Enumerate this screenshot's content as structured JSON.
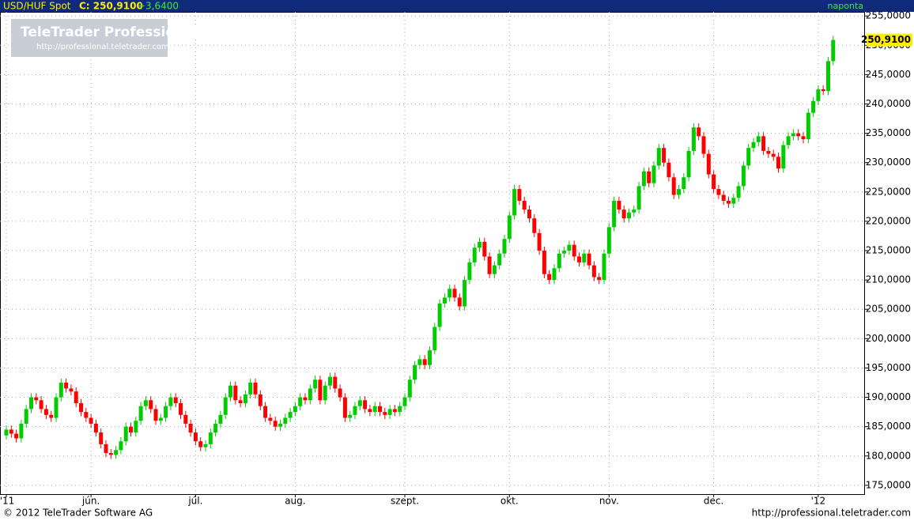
{
  "header": {
    "symbol": "USD/HUF Spot",
    "close_label": "C: 250,9100",
    "change_label": "+3,6400",
    "period": "naponta"
  },
  "watermark": {
    "title": "TeleTrader Professional",
    "url": "http://professional.teletrader.com/"
  },
  "footer": {
    "copyright": "© 2012 TeleTrader Software AG",
    "url": "http://professional.teletrader.com"
  },
  "chart_data": {
    "type": "candlestick",
    "up_color": "#00cc00",
    "down_color": "#ff0000",
    "grid": true,
    "last_value_label": "250,9100",
    "ylim": [
      173.5,
      255.7
    ],
    "yticks": [
      {
        "value": 175,
        "label": "175,0000"
      },
      {
        "value": 180,
        "label": "180,0000"
      },
      {
        "value": 185,
        "label": "185,0000"
      },
      {
        "value": 190,
        "label": "190,0000"
      },
      {
        "value": 195,
        "label": "195,0000"
      },
      {
        "value": 200,
        "label": "200,0000"
      },
      {
        "value": 205,
        "label": "205,0000"
      },
      {
        "value": 210,
        "label": "210,0000"
      },
      {
        "value": 215,
        "label": "215,0000"
      },
      {
        "value": 220,
        "label": "220,0000"
      },
      {
        "value": 225,
        "label": "225,0000"
      },
      {
        "value": 230,
        "label": "230,0000"
      },
      {
        "value": 235,
        "label": "235,0000"
      },
      {
        "value": 240,
        "label": "240,0000"
      },
      {
        "value": 245,
        "label": "245,0000"
      },
      {
        "value": 250,
        "label": "250,0000"
      },
      {
        "value": 255,
        "label": "255,0000"
      }
    ],
    "categories": [
      "'11",
      null,
      null,
      null,
      null,
      null,
      null,
      null,
      null,
      null,
      null,
      null,
      null,
      null,
      null,
      null,
      null,
      "jún.",
      null,
      null,
      null,
      null,
      null,
      null,
      null,
      null,
      null,
      null,
      null,
      null,
      null,
      null,
      null,
      null,
      null,
      null,
      null,
      null,
      "júl.",
      null,
      null,
      null,
      null,
      null,
      null,
      null,
      null,
      null,
      null,
      null,
      null,
      null,
      null,
      null,
      null,
      null,
      null,
      null,
      "aug.",
      null,
      null,
      null,
      null,
      null,
      null,
      null,
      null,
      null,
      null,
      null,
      null,
      null,
      null,
      null,
      null,
      null,
      null,
      null,
      null,
      null,
      "szept.",
      null,
      null,
      null,
      null,
      null,
      null,
      null,
      null,
      null,
      null,
      null,
      null,
      null,
      null,
      null,
      null,
      null,
      null,
      null,
      null,
      "okt.",
      null,
      null,
      null,
      null,
      null,
      null,
      null,
      null,
      null,
      null,
      null,
      null,
      null,
      null,
      null,
      null,
      null,
      null,
      null,
      "nov.",
      null,
      null,
      null,
      null,
      null,
      null,
      null,
      null,
      null,
      null,
      null,
      null,
      null,
      null,
      null,
      null,
      null,
      null,
      null,
      null,
      "dec.",
      null,
      null,
      null,
      null,
      null,
      null,
      null,
      null,
      null,
      null,
      null,
      null,
      null,
      null,
      null,
      null,
      null,
      null,
      null,
      null,
      "'12",
      null,
      null,
      null
    ],
    "open": [
      183.5,
      184.5,
      183.8,
      183,
      185.5,
      188,
      190,
      189.5,
      188,
      187,
      186.5,
      190,
      192.5,
      191.5,
      191,
      189,
      187.5,
      186.5,
      185.5,
      184,
      182,
      180.5,
      180.2,
      181,
      182.5,
      185,
      184,
      186,
      188.5,
      189.5,
      188,
      186,
      186.5,
      188.5,
      190,
      189,
      187,
      185.5,
      184,
      182.5,
      181.5,
      182,
      184,
      185.5,
      187,
      190,
      192,
      189.5,
      189,
      190.5,
      192.5,
      190.5,
      188.5,
      186.5,
      186,
      185,
      185.5,
      186.5,
      187.5,
      188.5,
      190,
      189.5,
      191.5,
      193,
      189.5,
      192,
      193.5,
      191.5,
      190,
      186.5,
      187,
      188.5,
      189.5,
      188,
      187.5,
      188.5,
      187.5,
      187,
      188,
      187.5,
      188.5,
      190,
      193,
      195.5,
      196.5,
      195.5,
      198,
      202,
      206,
      207,
      208.5,
      207,
      205.5,
      210,
      213,
      215.5,
      216.5,
      214,
      211,
      212.5,
      214.5,
      217,
      221,
      225.5,
      223.5,
      222,
      220.5,
      218,
      215,
      211,
      210,
      212,
      214.5,
      215,
      216,
      214,
      213,
      214.5,
      212.5,
      210.5,
      210,
      214.5,
      219,
      223.5,
      222,
      220.5,
      221.5,
      222,
      226,
      228.5,
      226.5,
      229.5,
      232.5,
      230,
      227.5,
      224.5,
      225.5,
      227.5,
      232,
      236,
      234.5,
      231.5,
      228,
      225.5,
      224.5,
      223.5,
      223,
      224,
      226,
      229.5,
      232.5,
      233.5,
      234.5,
      232,
      231.5,
      231,
      229,
      233,
      234.5,
      235,
      234.5,
      234,
      238.5,
      240.5,
      242.5,
      242.2,
      247.3
    ],
    "high": [
      185.2,
      185.2,
      184.5,
      186.2,
      188.7,
      190.7,
      190.7,
      190.2,
      188.7,
      187.7,
      190.7,
      193.2,
      193.2,
      192.2,
      191.7,
      189.7,
      188.2,
      187.2,
      186.2,
      184.7,
      182.7,
      181.2,
      181.7,
      183.2,
      185.7,
      185.7,
      186.7,
      189.2,
      190.2,
      190.2,
      188.7,
      187.2,
      189.2,
      190.7,
      190.7,
      189.7,
      187.7,
      186.2,
      184.7,
      183.2,
      182.7,
      184.7,
      186.2,
      187.7,
      190.7,
      192.7,
      192.7,
      190.2,
      191.2,
      193.2,
      193.2,
      191.2,
      189.2,
      187.2,
      186.7,
      186.2,
      187.2,
      188.2,
      189.2,
      190.7,
      190.7,
      192.2,
      193.7,
      193.7,
      192.7,
      194.2,
      194.2,
      192.2,
      190.7,
      187.7,
      189.2,
      190.2,
      190.2,
      188.7,
      189.2,
      189.2,
      188.2,
      188.7,
      188.7,
      189.2,
      190.7,
      193.7,
      196.2,
      197.2,
      197.2,
      198.7,
      202.7,
      206.7,
      207.7,
      209.2,
      209.2,
      207.7,
      210.7,
      213.7,
      216.2,
      217.2,
      217.2,
      214.7,
      213.2,
      215.2,
      217.7,
      221.7,
      226.2,
      226.2,
      224.2,
      222.7,
      221.2,
      218.7,
      215.7,
      211.7,
      212.7,
      215.2,
      215.7,
      216.7,
      216.7,
      214.7,
      215.2,
      215.2,
      213.2,
      211.2,
      215.2,
      219.7,
      224.2,
      224.2,
      222.7,
      222.2,
      222.7,
      226.7,
      229.2,
      229.2,
      230.2,
      233.2,
      233.2,
      230.7,
      228.2,
      226.2,
      228.2,
      232.7,
      236.7,
      236.7,
      235.2,
      232.2,
      228.7,
      226.2,
      225.2,
      224.2,
      224.7,
      226.7,
      230.2,
      233.2,
      234.2,
      235.2,
      235.2,
      232.7,
      232.2,
      231.7,
      233.7,
      235.2,
      235.7,
      235.7,
      235.2,
      239.2,
      241.2,
      243.2,
      243.2,
      248.0,
      251.61
    ],
    "low": [
      182.8,
      183.1,
      182.3,
      182.3,
      184.8,
      187.3,
      188.8,
      187.3,
      186.3,
      185.8,
      185.8,
      189.3,
      190.8,
      190.3,
      188.3,
      186.8,
      185.8,
      184.8,
      183.3,
      181.3,
      179.8,
      179.5,
      179.5,
      180.3,
      181.8,
      183.3,
      183.3,
      185.3,
      187.8,
      187.3,
      185.3,
      185.3,
      185.8,
      187.8,
      188.3,
      186.3,
      184.8,
      183.3,
      181.8,
      180.8,
      180.8,
      181.3,
      183.3,
      184.8,
      186.3,
      189.3,
      188.8,
      188.3,
      188.3,
      189.8,
      189.8,
      187.8,
      185.8,
      185.3,
      184.3,
      184.3,
      184.8,
      185.8,
      186.8,
      187.8,
      188.8,
      188.8,
      190.8,
      188.8,
      188.8,
      191.3,
      190.8,
      189.3,
      185.8,
      185.8,
      186.3,
      187.8,
      187.3,
      186.8,
      186.8,
      186.8,
      186.3,
      186.3,
      186.8,
      186.8,
      187.8,
      189.3,
      192.3,
      194.8,
      194.8,
      194.8,
      197.3,
      201.3,
      205.3,
      206.3,
      206.3,
      204.8,
      204.8,
      209.3,
      212.3,
      214.8,
      213.3,
      210.3,
      210.3,
      211.8,
      213.8,
      216.3,
      220.3,
      222.8,
      221.3,
      219.8,
      217.3,
      214.3,
      210.3,
      209.3,
      209.3,
      211.3,
      213.8,
      214.3,
      213.3,
      212.3,
      212.3,
      211.8,
      209.8,
      209.3,
      209.3,
      213.8,
      218.3,
      221.3,
      219.8,
      219.8,
      220.8,
      221.3,
      225.3,
      225.8,
      225.8,
      228.8,
      229.3,
      226.8,
      223.8,
      223.8,
      224.8,
      226.8,
      231.3,
      233.8,
      230.8,
      227.3,
      224.8,
      223.8,
      222.8,
      222.3,
      222.3,
      223.3,
      225.3,
      228.8,
      231.8,
      232.8,
      231.3,
      230.8,
      230.3,
      228.3,
      228.3,
      232.3,
      233.8,
      233.8,
      233.3,
      233.3,
      237.8,
      239.8,
      241.5,
      241.5,
      246.6
    ],
    "close": [
      184.5,
      183.8,
      183,
      185.5,
      188,
      190,
      189.5,
      188,
      187,
      186.5,
      190,
      192.5,
      191.5,
      191,
      189,
      187.5,
      186.5,
      185.5,
      184,
      182,
      180.5,
      180.2,
      181,
      182.5,
      185,
      184,
      186,
      188.5,
      189.5,
      188,
      186,
      186.5,
      188.5,
      190,
      189,
      187,
      185.5,
      184,
      182.5,
      181.5,
      182,
      184,
      185.5,
      187,
      190,
      192,
      189.5,
      189,
      190.5,
      192.5,
      190.5,
      188.5,
      186.5,
      186,
      185,
      185.5,
      186.5,
      187.5,
      188.5,
      190,
      189.5,
      191.5,
      193,
      189.5,
      192,
      193.5,
      191.5,
      190,
      186.5,
      187,
      188.5,
      189.5,
      188,
      187.5,
      188.5,
      187.5,
      187,
      188,
      187.5,
      188.5,
      190,
      193,
      195.5,
      196.5,
      195.5,
      198,
      202,
      206,
      207,
      208.5,
      207,
      205.5,
      210,
      213,
      215.5,
      216.5,
      214,
      211,
      212.5,
      214.5,
      217,
      221,
      225.5,
      223.5,
      222,
      220.5,
      218,
      215,
      211,
      210,
      212,
      214.5,
      215,
      216,
      214,
      213,
      214.5,
      212.5,
      210.5,
      210,
      214.5,
      219,
      223.5,
      222,
      220.5,
      221.5,
      222,
      226,
      228.5,
      226.5,
      229.5,
      232.5,
      230,
      227.5,
      224.5,
      225.5,
      227.5,
      232,
      236,
      234.5,
      231.5,
      228,
      225.5,
      224.5,
      223.5,
      223,
      224,
      226,
      229.5,
      232.5,
      233.5,
      234.5,
      232,
      231.5,
      231,
      229,
      233,
      234.5,
      235,
      234.5,
      234,
      238.5,
      240.5,
      242.5,
      242.2,
      247.3,
      250.91
    ]
  }
}
